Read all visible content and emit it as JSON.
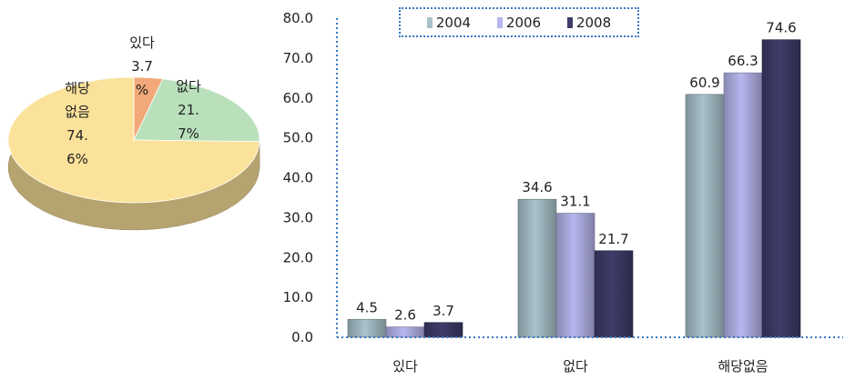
{
  "colors": {
    "series_2004": "#a9c3cc",
    "series_2006": "#b7b6ee",
    "series_2008": "#3f3c6a",
    "pie_yes": "#f2a878",
    "pie_no": "#b9e0bb",
    "pie_na": "#fbe29b",
    "axis_dotted": "#3a78c2"
  },
  "chart_data": [
    {
      "type": "pie",
      "slices": [
        {
          "name": "있다",
          "value": 3.7,
          "label_lines": [
            "있다",
            "3.7",
            "%"
          ],
          "color": "pie_yes"
        },
        {
          "name": "없다",
          "value": 21.7,
          "label_lines": [
            "없다",
            "21.",
            "7%"
          ],
          "color": "pie_no"
        },
        {
          "name": "해당없음",
          "value": 74.6,
          "label_lines": [
            "해당",
            "없음",
            "74.",
            "6%"
          ],
          "color": "pie_na"
        }
      ]
    },
    {
      "type": "bar",
      "categories": [
        "있다",
        "없다",
        "해당없음"
      ],
      "series": [
        {
          "name": "2004",
          "values": [
            4.5,
            34.6,
            60.9
          ]
        },
        {
          "name": "2006",
          "values": [
            2.6,
            31.1,
            66.3
          ]
        },
        {
          "name": "2008",
          "values": [
            3.7,
            21.7,
            74.6
          ]
        }
      ],
      "ylim": [
        0,
        80
      ],
      "yticks": [
        "0.0",
        "10.0",
        "20.0",
        "30.0",
        "40.0",
        "50.0",
        "60.0",
        "70.0",
        "80.0"
      ],
      "value_labels": [
        [
          "4.5",
          "34.6",
          "60.9"
        ],
        [
          "2.6",
          "31.1",
          "66.3"
        ],
        [
          "3.7",
          "21.7",
          "74.6"
        ]
      ],
      "legend_placement": "top-center",
      "grid": false
    }
  ]
}
